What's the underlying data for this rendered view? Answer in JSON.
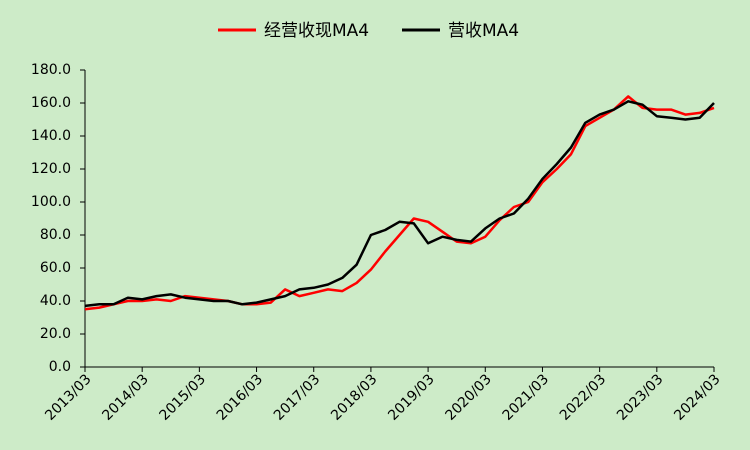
{
  "chart_data": {
    "type": "line",
    "categories": [
      "2013/03",
      null,
      null,
      null,
      "2014/03",
      null,
      null,
      null,
      "2015/03",
      null,
      null,
      null,
      "2016/03",
      null,
      null,
      null,
      "2017/03",
      null,
      null,
      null,
      "2018/03",
      null,
      null,
      null,
      "2019/03",
      null,
      null,
      null,
      "2020/03",
      null,
      null,
      null,
      "2021/03",
      null,
      null,
      null,
      "2022/03",
      null,
      null,
      null,
      "2023/03",
      null,
      null,
      null,
      "2024/03"
    ],
    "series": [
      {
        "name": "经营收现MA4",
        "color": "#ff0000",
        "values": [
          35,
          36,
          38,
          40,
          40,
          41,
          40,
          43,
          42,
          41,
          40,
          38,
          38,
          39,
          47,
          43,
          45,
          47,
          46,
          51,
          59,
          70,
          80,
          90,
          88,
          82,
          76,
          75,
          79,
          89,
          97,
          100,
          112,
          120,
          129,
          146,
          151,
          156,
          164,
          157,
          156,
          156,
          153,
          154,
          157
        ]
      },
      {
        "name": "营收MA4",
        "color": "#000000",
        "values": [
          37,
          38,
          38,
          42,
          41,
          43,
          44,
          42,
          41,
          40,
          40,
          38,
          39,
          41,
          43,
          47,
          48,
          50,
          54,
          62,
          80,
          83,
          88,
          87,
          75,
          79,
          77,
          76,
          84,
          90,
          93,
          102,
          114,
          123,
          133,
          148,
          153,
          156,
          161,
          159,
          152,
          151,
          150,
          151,
          160
        ]
      }
    ],
    "ylim": [
      0,
      180
    ],
    "yticks": [
      {
        "value": 0,
        "label": "0.0"
      },
      {
        "value": 20,
        "label": "20.0"
      },
      {
        "value": 40,
        "label": "40.0"
      },
      {
        "value": 60,
        "label": "60.0"
      },
      {
        "value": 80,
        "label": "80.0"
      },
      {
        "value": 100,
        "label": "100.0"
      },
      {
        "value": 120,
        "label": "120.0"
      },
      {
        "value": 140,
        "label": "140.0"
      },
      {
        "value": 160,
        "label": "160.0"
      },
      {
        "value": 180,
        "label": "180.0"
      }
    ],
    "legend": "top"
  }
}
